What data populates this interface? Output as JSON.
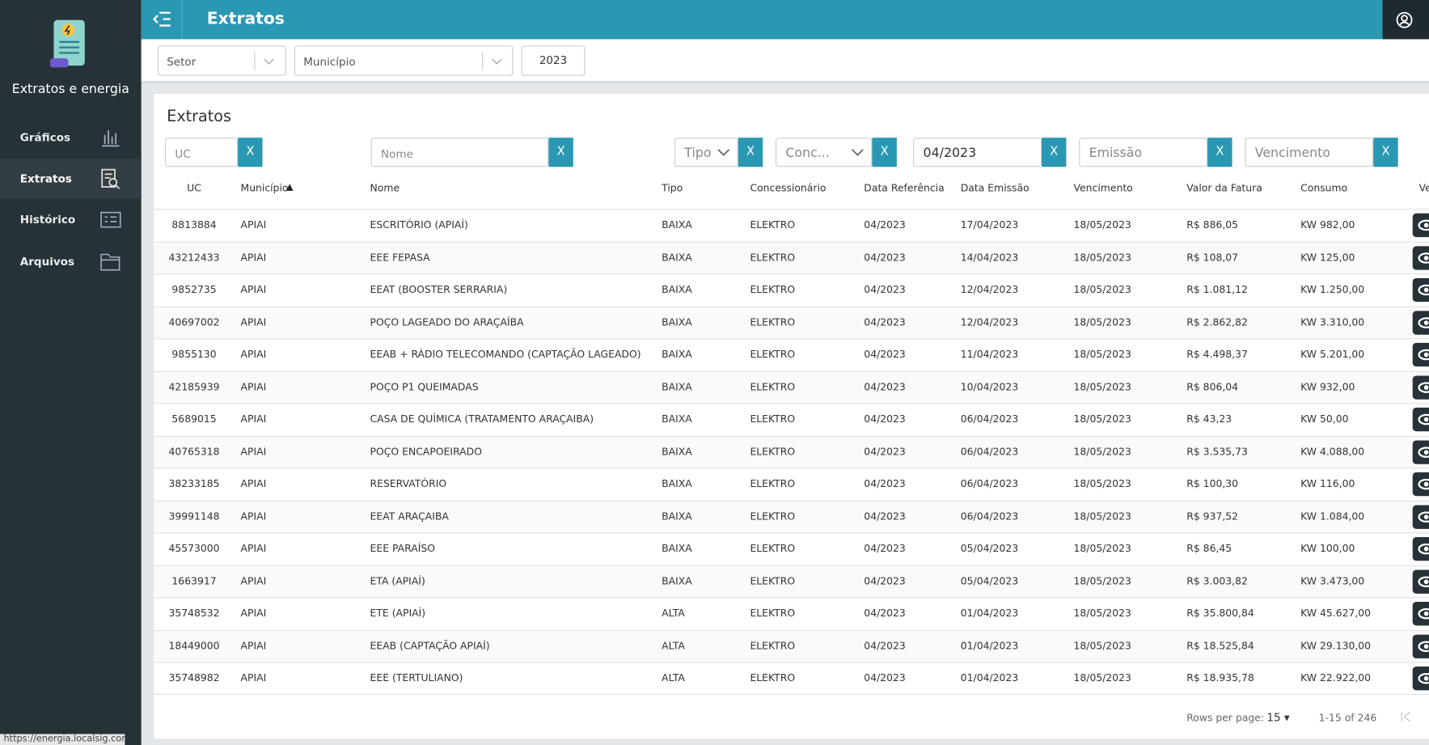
{
  "sidebar": {
    "app_title": "Extratos e energia",
    "menu": [
      "Gráficos",
      "Extratos",
      "Histórico",
      "Arquivos"
    ],
    "status_url": "https://energia.localsig.com"
  },
  "header": {
    "title": "Extratos"
  },
  "top_filters": {
    "setor": "Setor",
    "municipio": "Município",
    "ano": "2023"
  },
  "card": {
    "title": "Extratos"
  },
  "table_filters": [
    {
      "placeholder": "UC",
      "button": "X"
    },
    {
      "placeholder": "Nome",
      "button": "X"
    },
    {
      "placeholder": "Tipo",
      "button": "X"
    },
    {
      "placeholder": "Conc...",
      "button": "X"
    },
    {
      "placeholder": "04/2023",
      "button": "X"
    },
    {
      "placeholder": "Emissão",
      "button": "X"
    },
    {
      "placeholder": "Vencimento",
      "button": "X"
    }
  ],
  "table": {
    "columns": [
      "UC",
      "Município",
      "Nome",
      "Tipo",
      "Concessionário",
      "Data Referência",
      "Data Emissão",
      "Vencimento",
      "Valor da Fatura",
      "Consumo",
      "Ver"
    ],
    "rows": [
      [
        "8813884",
        "APIAI",
        "ESCRITÓRIO (APIAÍ)",
        "BAIXA",
        "ELEKTRO",
        "04/2023",
        "17/04/2023",
        "18/05/2023",
        "R$ 886,05",
        "KW 982,00"
      ],
      [
        "43212433",
        "APIAI",
        "EEE FEPASA",
        "BAIXA",
        "ELEKTRO",
        "04/2023",
        "14/04/2023",
        "18/05/2023",
        "R$ 108,07",
        "KW 125,00"
      ],
      [
        "9852735",
        "APIAI",
        "EEAT (BOOSTER SERRARIA)",
        "BAIXA",
        "ELEKTRO",
        "04/2023",
        "12/04/2023",
        "18/05/2023",
        "R$ 1.081,12",
        "KW 1.250,00"
      ],
      [
        "40697002",
        "APIAI",
        "POÇO LAGEADO DO ARAÇAÍBA",
        "BAIXA",
        "ELEKTRO",
        "04/2023",
        "12/04/2023",
        "18/05/2023",
        "R$ 2.862,82",
        "KW 3.310,00"
      ],
      [
        "9855130",
        "APIAI",
        "EEAB + RÁDIO TELECOMANDO (CAPTAÇÃO LAGEADO)",
        "BAIXA",
        "ELEKTRO",
        "04/2023",
        "11/04/2023",
        "18/05/2023",
        "R$ 4.498,37",
        "KW 5.201,00"
      ],
      [
        "42185939",
        "APIAI",
        "POÇO P1 QUEIMADAS",
        "BAIXA",
        "ELEKTRO",
        "04/2023",
        "10/04/2023",
        "18/05/2023",
        "R$ 806,04",
        "KW 932,00"
      ],
      [
        "5689015",
        "APIAI",
        "CASA DE QUÍMICA (TRATAMENTO ARAÇAIBA)",
        "BAIXA",
        "ELEKTRO",
        "04/2023",
        "06/04/2023",
        "18/05/2023",
        "R$ 43,23",
        "KW 50,00"
      ],
      [
        "40765318",
        "APIAI",
        "POÇO ENCAPOEIRADO",
        "BAIXA",
        "ELEKTRO",
        "04/2023",
        "06/04/2023",
        "18/05/2023",
        "R$ 3.535,73",
        "KW 4.088,00"
      ],
      [
        "38233185",
        "APIAI",
        "RESERVATÓRIO",
        "BAIXA",
        "ELEKTRO",
        "04/2023",
        "06/04/2023",
        "18/05/2023",
        "R$ 100,30",
        "KW 116,00"
      ],
      [
        "39991148",
        "APIAI",
        "EEAT ARAÇAIBA",
        "BAIXA",
        "ELEKTRO",
        "04/2023",
        "06/04/2023",
        "18/05/2023",
        "R$ 937,52",
        "KW 1.084,00"
      ],
      [
        "45573000",
        "APIAI",
        "EEE PARAÍSO",
        "BAIXA",
        "ELEKTRO",
        "04/2023",
        "05/04/2023",
        "18/05/2023",
        "R$ 86,45",
        "KW 100,00"
      ],
      [
        "1663917",
        "APIAI",
        "ETA (APIAÍ)",
        "BAIXA",
        "ELEKTRO",
        "04/2023",
        "05/04/2023",
        "18/05/2023",
        "R$ 3.003,82",
        "KW 3.473,00"
      ],
      [
        "35748532",
        "APIAI",
        "ETE (APIAÍ)",
        "ALTA",
        "ELEKTRO",
        "04/2023",
        "01/04/2023",
        "18/05/2023",
        "R$ 35.800,84",
        "KW 45.627,00"
      ],
      [
        "18449000",
        "APIAI",
        "EEAB (CAPTAÇÃO APIAÍ)",
        "ALTA",
        "ELEKTRO",
        "04/2023",
        "01/04/2023",
        "18/05/2023",
        "R$ 18.525,84",
        "KW 29.130,00"
      ],
      [
        "35748982",
        "APIAI",
        "EEE (TERTULIANO)",
        "ALTA",
        "ELEKTRO",
        "04/2023",
        "01/04/2023",
        "18/05/2023",
        "R$ 18.935,78",
        "KW 22.922,00"
      ]
    ]
  },
  "pagination": {
    "rows_per_page_label": "Rows per page:",
    "rows_per_page": "15",
    "range": "1-15 of 246"
  }
}
